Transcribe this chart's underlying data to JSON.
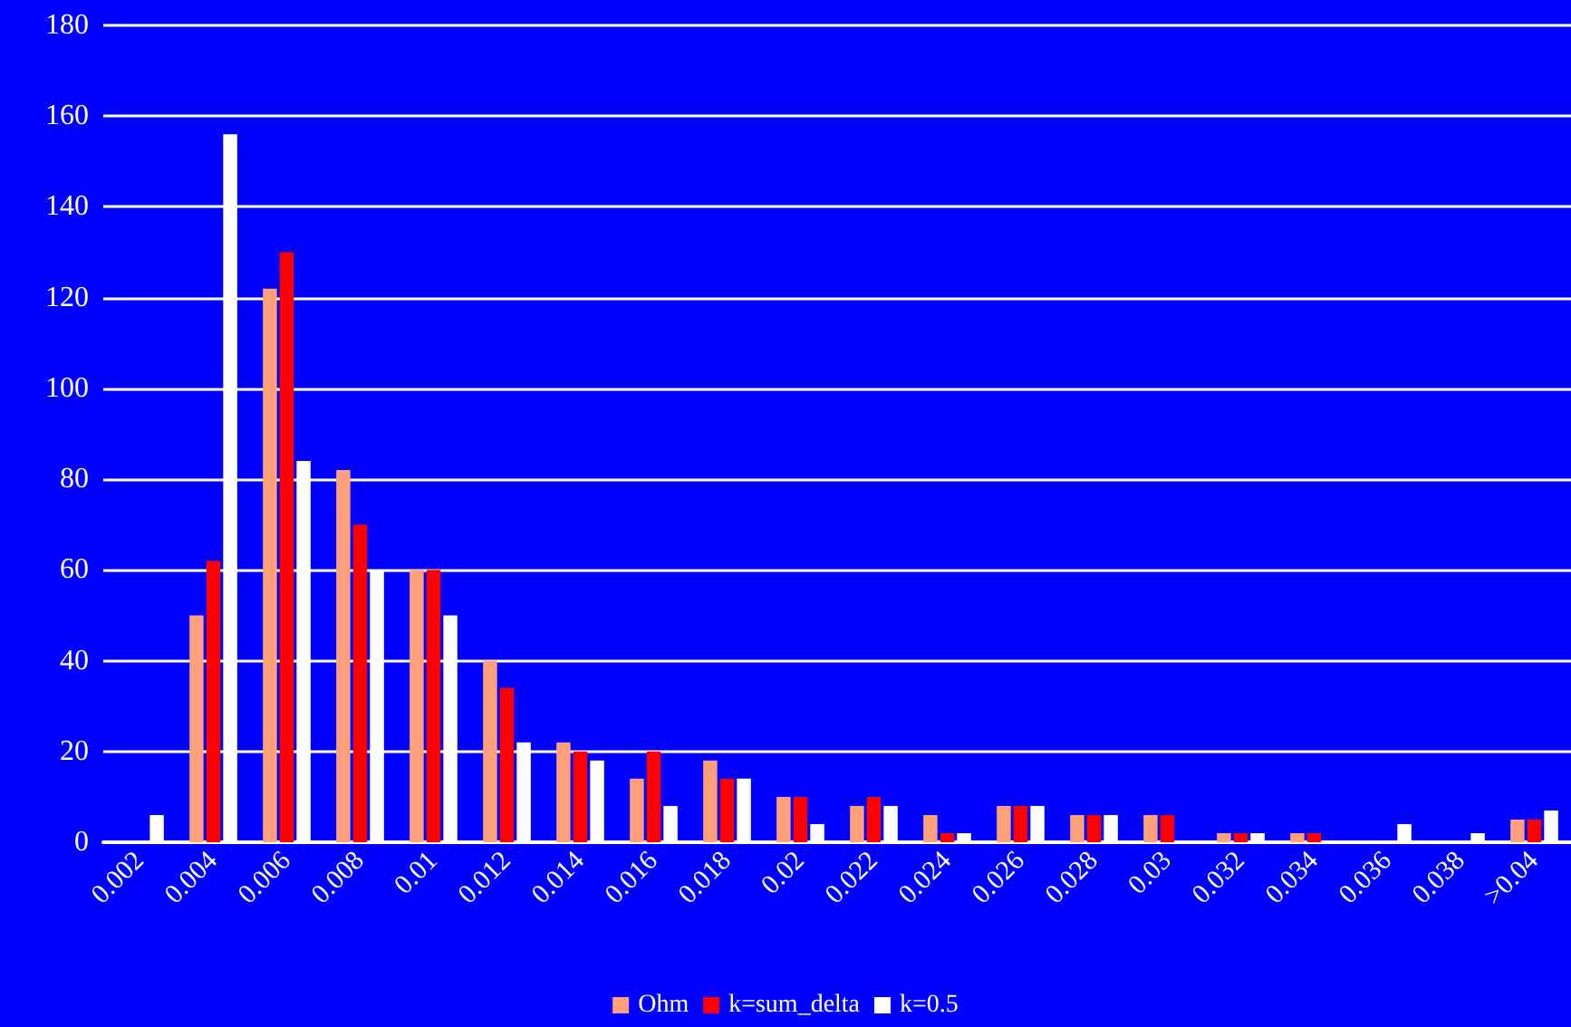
{
  "chart_data": {
    "type": "bar",
    "categories": [
      "0.002",
      "0.004",
      "0.006",
      "0.008",
      "0.01",
      "0.012",
      "0.014",
      "0.016",
      "0.018",
      "0.02",
      "0.022",
      "0.024",
      "0.026",
      "0.028",
      "0.03",
      "0.032",
      "0.034",
      "0.036",
      "0.038",
      ">0.04"
    ],
    "series": [
      {
        "name": "Ohm",
        "color": "#ffa07a",
        "values": [
          0,
          50,
          122,
          82,
          60,
          40,
          22,
          14,
          18,
          10,
          8,
          6,
          8,
          6,
          6,
          2,
          2,
          0,
          0,
          5
        ]
      },
      {
        "name": "k=sum_delta",
        "color": "#ff0000",
        "values": [
          0,
          62,
          130,
          70,
          60,
          34,
          20,
          20,
          14,
          10,
          10,
          2,
          8,
          6,
          6,
          2,
          2,
          0,
          0,
          5
        ]
      },
      {
        "name": "k=0.5",
        "color": "#ffffff",
        "values": [
          6,
          156,
          84,
          60,
          50,
          22,
          18,
          8,
          14,
          4,
          8,
          2,
          8,
          6,
          0,
          2,
          0,
          4,
          2,
          7
        ]
      }
    ],
    "ylim": [
      0,
      180
    ],
    "yticks": [
      0,
      20,
      40,
      60,
      80,
      100,
      120,
      140,
      160,
      180
    ],
    "grid": "y",
    "legend": "bottom"
  }
}
